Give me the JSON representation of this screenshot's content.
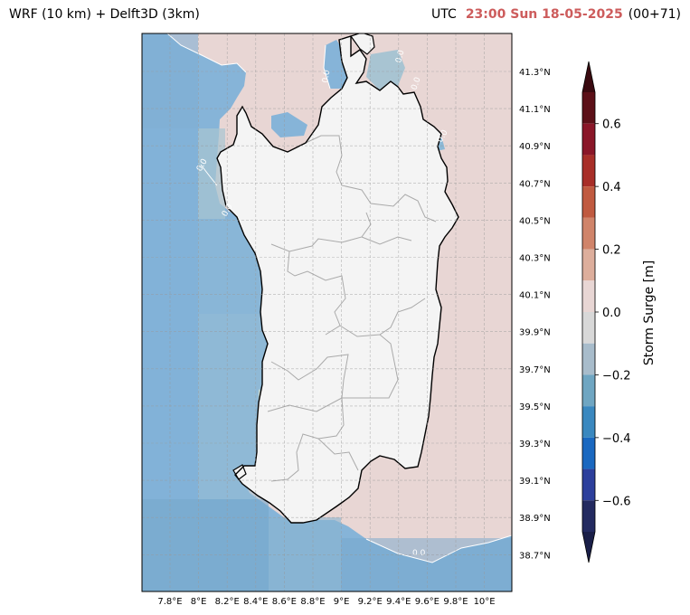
{
  "header": {
    "model_title": "WRF (10 km) + Delft3D (3km)",
    "utc_label": "UTC",
    "valid_time": "23:00 Sun 18-05-2025",
    "lead_time": "(00+71)"
  },
  "map": {
    "lat_labels": [
      "41.3°N",
      "41.1°N",
      "40.9°N",
      "40.7°N",
      "40.5°N",
      "40.3°N",
      "40.1°N",
      "39.9°N",
      "39.7°N",
      "39.5°N",
      "39.3°N",
      "39.1°N",
      "38.9°N",
      "38.7°N"
    ],
    "lon_labels": [
      "7.8°E",
      "8°E",
      "8.2°E",
      "8.4°E",
      "8.6°E",
      "8.8°E",
      "9°E",
      "9.2°E",
      "9.4°E",
      "9.6°E",
      "9.8°E",
      "10°E"
    ],
    "contour_labels": [
      "0.0",
      "0.0",
      "0.0",
      "0.0",
      "0.0",
      "0.0",
      "0.0"
    ],
    "colors": {
      "land": "#f4f4f4",
      "sea_east": "#e8d6d4",
      "sea_west": "#86b4d8",
      "coast": "#000000",
      "border": "#aaaaaa",
      "grid": "#999999"
    }
  },
  "colorbar": {
    "label": "Storm Surge [m]",
    "ticks": [
      "0.6",
      "0.4",
      "0.2",
      "0.0",
      "−0.2",
      "−0.4",
      "−0.6"
    ],
    "tick_values": [
      0.6,
      0.4,
      0.2,
      0.0,
      -0.2,
      -0.4,
      -0.6
    ],
    "range": [
      -0.7,
      0.7
    ],
    "levels": [
      {
        "lo": 0.6,
        "hi": 0.7,
        "color": "#5c1018"
      },
      {
        "lo": 0.5,
        "hi": 0.6,
        "color": "#8a1628"
      },
      {
        "lo": 0.4,
        "hi": 0.5,
        "color": "#a82e28"
      },
      {
        "lo": 0.3,
        "hi": 0.4,
        "color": "#c05a40"
      },
      {
        "lo": 0.2,
        "hi": 0.3,
        "color": "#d0846a"
      },
      {
        "lo": 0.1,
        "hi": 0.2,
        "color": "#ddae9c"
      },
      {
        "lo": 0.0,
        "hi": 0.1,
        "color": "#e8d6d4"
      },
      {
        "lo": -0.1,
        "hi": 0.0,
        "color": "#d8d8d8"
      },
      {
        "lo": -0.2,
        "hi": -0.1,
        "color": "#a8bccb"
      },
      {
        "lo": -0.3,
        "hi": -0.2,
        "color": "#6fa6c2"
      },
      {
        "lo": -0.4,
        "hi": -0.3,
        "color": "#3a88bf"
      },
      {
        "lo": -0.5,
        "hi": -0.4,
        "color": "#1a68c0"
      },
      {
        "lo": -0.6,
        "hi": -0.5,
        "color": "#2c3f9c"
      },
      {
        "lo": -0.7,
        "hi": -0.6,
        "color": "#232a60"
      }
    ],
    "over_color": "#3a0a10",
    "under_color": "#1a1f48"
  }
}
